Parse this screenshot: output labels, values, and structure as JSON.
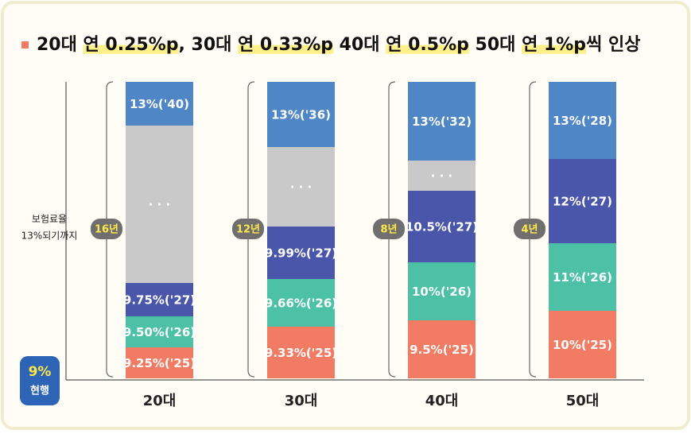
{
  "title_parts": [
    {
      "text": "20대 ",
      "highlight": false
    },
    {
      "text": "연 0.25%p",
      "highlight": true
    },
    {
      "text": ", 30대 ",
      "highlight": false
    },
    {
      "text": "연 0.33%p",
      "highlight": true
    },
    {
      "text": " 40대 ",
      "highlight": false
    },
    {
      "text": "연 0.5%p",
      "highlight": true
    },
    {
      "text": " 50대 ",
      "highlight": false
    },
    {
      "text": "연 1%p",
      "highlight": true
    },
    {
      "text": "씩 인상",
      "highlight": false
    }
  ],
  "axis_note": [
    "보험료율",
    "13%되기까지"
  ],
  "current": {
    "value": "9%",
    "label": "현행"
  },
  "columns": [
    {
      "label": "20대",
      "duration": "16년",
      "segments": [
        {
          "text": "13%('40)",
          "color": "#4f86c6"
        },
        {
          "text": "· · ·",
          "color": "#c9c9c9"
        },
        {
          "text": "9.75%('27)",
          "color": "#4a56a9"
        },
        {
          "text": "9.50%('26)",
          "color": "#4dc1a6"
        },
        {
          "text": "9.25%('25)",
          "color": "#f27b63"
        }
      ]
    },
    {
      "label": "30대",
      "duration": "12년",
      "segments": [
        {
          "text": "13%('36)",
          "color": "#4f86c6"
        },
        {
          "text": "· · ·",
          "color": "#c9c9c9"
        },
        {
          "text": "9.99%('27)",
          "color": "#4a56a9"
        },
        {
          "text": "9.66%('26)",
          "color": "#4dc1a6"
        },
        {
          "text": "9.33%('25)",
          "color": "#f27b63"
        }
      ]
    },
    {
      "label": "40대",
      "duration": "8년",
      "segments": [
        {
          "text": "13%('32)",
          "color": "#4f86c6"
        },
        {
          "text": "· · ·",
          "color": "#c9c9c9"
        },
        {
          "text": "10.5%('27)",
          "color": "#4a56a9"
        },
        {
          "text": "10%('26)",
          "color": "#4dc1a6"
        },
        {
          "text": "9.5%('25)",
          "color": "#f27b63"
        }
      ]
    },
    {
      "label": "50대",
      "duration": "4년",
      "segments": [
        {
          "text": "13%('28)",
          "color": "#4f86c6"
        },
        {
          "text": "12%('27)",
          "color": "#4a56a9"
        },
        {
          "text": "11%('26)",
          "color": "#4dc1a6"
        },
        {
          "text": "10%('25)",
          "color": "#f27b63"
        }
      ]
    }
  ]
}
